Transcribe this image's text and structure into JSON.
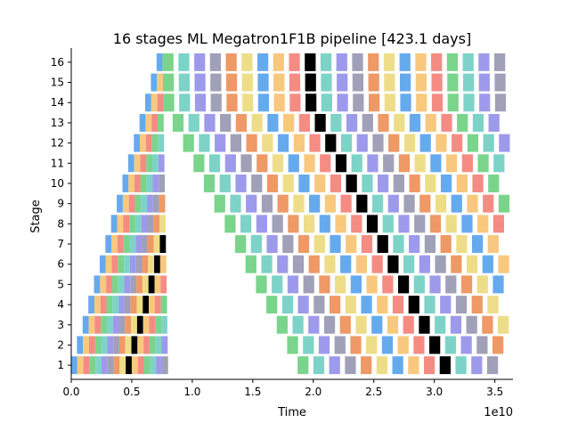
{
  "chart_data": {
    "type": "heatmap",
    "title": "16 stages ML Megatron1F1B pipeline [423.1 days]",
    "xlabel": "Time",
    "ylabel": "Stage",
    "x_offset_label": "1e10",
    "xlim": [
      0,
      3.65
    ],
    "ylim": [
      0.3,
      16.7
    ],
    "x_ticks": [
      0.0,
      0.5,
      1.0,
      1.5,
      2.0,
      2.5,
      3.0,
      3.5
    ],
    "x_tick_labels": [
      "0.0",
      "0.5",
      "1.0",
      "1.5",
      "2.0",
      "2.5",
      "3.0",
      "3.5"
    ],
    "y_ticks": [
      1,
      2,
      3,
      4,
      5,
      6,
      7,
      8,
      9,
      10,
      11,
      12,
      13,
      14,
      15,
      16
    ],
    "y_tick_labels": [
      "1",
      "2",
      "3",
      "4",
      "5",
      "6",
      "7",
      "8",
      "9",
      "10",
      "11",
      "12",
      "13",
      "14",
      "15",
      "16"
    ],
    "grid": false,
    "spines": [
      "left",
      "bottom"
    ],
    "colors": [
      "#66aaee",
      "#f7c87d",
      "#f58c84",
      "#7bd48c",
      "#7dd3c7",
      "#9e9aeb",
      "#a0a0b8",
      "#ee9966",
      "#eedd88",
      "#000000"
    ],
    "num_stages": 16,
    "forward_duration": 0.05,
    "backward_duration": 0.09,
    "stage_offset_forward": 0.047,
    "stage_offset_backward": 0.086,
    "stage1_first_backward_start": 1.87,
    "microbatches_per_stage": 26,
    "highlighted_microbatch": 9,
    "total_time": 3.65
  }
}
